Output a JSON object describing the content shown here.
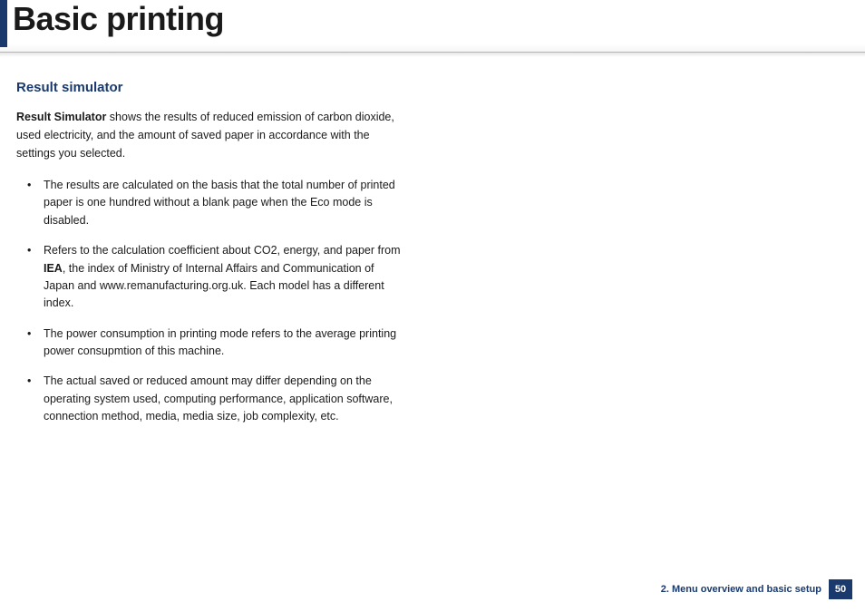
{
  "header": {
    "title": "Basic printing"
  },
  "section": {
    "title": "Result simulator",
    "intro_lead": "Result Simulator",
    "intro_rest": " shows the results of reduced emission of carbon dioxide, used electricity, and the amount of saved paper in accordance with the settings you selected.",
    "bullets": [
      {
        "text": "The results are calculated on the basis that the total number of printed paper is one hundred without a blank page when the Eco mode is disabled."
      },
      {
        "pre": "Refers to the calculation coefficient about CO2, energy, and paper from ",
        "bold": "IEA",
        "post": ", the index of Ministry of Internal Affairs and Communication of Japan and www.remanufacturing.org.uk. Each model has a different index."
      },
      {
        "text": "The power consumption in printing mode refers to the average printing power consupmtion of this machine."
      },
      {
        "text": "The actual saved or reduced amount may differ depending on the operating system used, computing performance, application software, connection method, media, media size, job complexity, etc."
      }
    ]
  },
  "footer": {
    "chapter": "2. Menu overview and basic setup",
    "page": "50"
  }
}
